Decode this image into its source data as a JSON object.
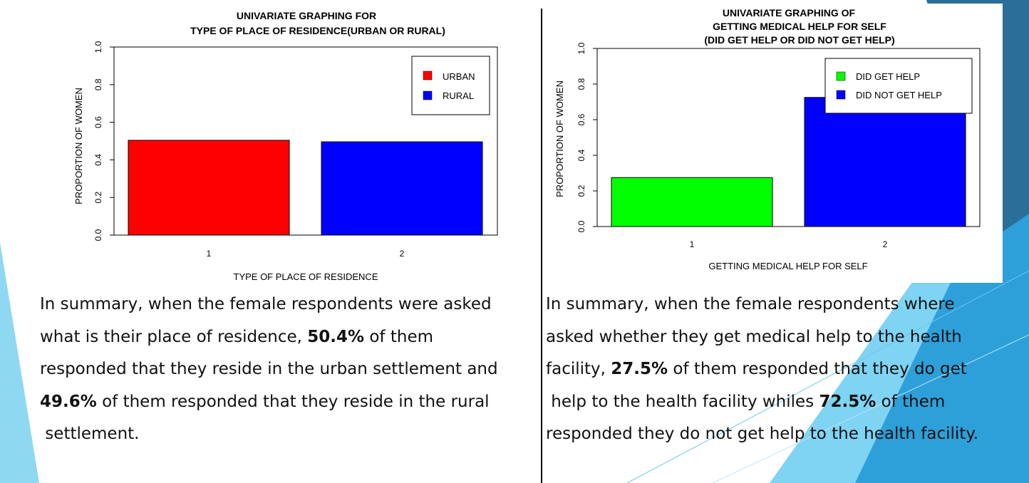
{
  "colors": {
    "accent_dark": "#2a6f99",
    "accent_mid": "#2d9fd9",
    "accent_light": "#7fd3f3",
    "urban": "#ff0000",
    "rural": "#0000ff",
    "did_get_help": "#00ff00",
    "did_not_get_help": "#0000ff"
  },
  "chart_data": [
    {
      "type": "bar",
      "title_lines": [
        "UNIVARIATE GRAPHING FOR",
        "TYPE OF PLACE OF RESIDENCE(URBAN OR RURAL)"
      ],
      "xlabel": "TYPE OF PLACE OF RESIDENCE",
      "ylabel": "PROPORTION OF WOMEN",
      "categories": [
        "1",
        "2"
      ],
      "values": [
        0.504,
        0.496
      ],
      "colors": [
        "#ff0000",
        "#0000ff"
      ],
      "ylim": [
        0,
        1.0
      ],
      "yticks": [
        "0.0",
        "0.2",
        "0.4",
        "0.6",
        "0.8",
        "1.0"
      ],
      "legend": {
        "position": "top-right",
        "entries": [
          "URBAN",
          "RURAL"
        ]
      }
    },
    {
      "type": "bar",
      "title_lines": [
        "UNIVARIATE GRAPHING OF",
        "GETTING MEDICAL HELP FOR SELF",
        "(DID GET HELP OR DID NOT GET HELP)"
      ],
      "xlabel": "GETTING MEDICAL HELP FOR SELF",
      "ylabel": "PROPORTION OF WOMEN",
      "categories": [
        "1",
        "2"
      ],
      "values": [
        0.275,
        0.725
      ],
      "colors": [
        "#00ff00",
        "#0000ff"
      ],
      "ylim": [
        0,
        1.0
      ],
      "yticks": [
        "0.0",
        "0.2",
        "0.4",
        "0.6",
        "0.8",
        "1.0"
      ],
      "legend": {
        "position": "top-right",
        "entries": [
          "DID GET HELP",
          "DID NOT GET HELP"
        ]
      }
    }
  ],
  "summary_left": {
    "l1": "In summary, when the female respondents were asked",
    "l2_a": "what is their place of residence, ",
    "l2_b": "50.4%",
    "l2_c": " of them",
    "l3": "responded that they reside in the urban settlement and",
    "l4_a": "49.6%",
    "l4_b": " of them responded that they reside in the rural",
    "l5": " settlement."
  },
  "summary_right": {
    "l1": "In summary, when the female respondents where",
    "l2": "asked whether they get medical help to the health",
    "l3_a": "facility, ",
    "l3_b": "27.5%",
    "l3_c": " of them responded that they do get",
    "l4_a": " help to the health facility whiles ",
    "l4_b": "72.5%",
    "l4_c": " of them",
    "l5": "responded they do not get help to the health facility."
  }
}
